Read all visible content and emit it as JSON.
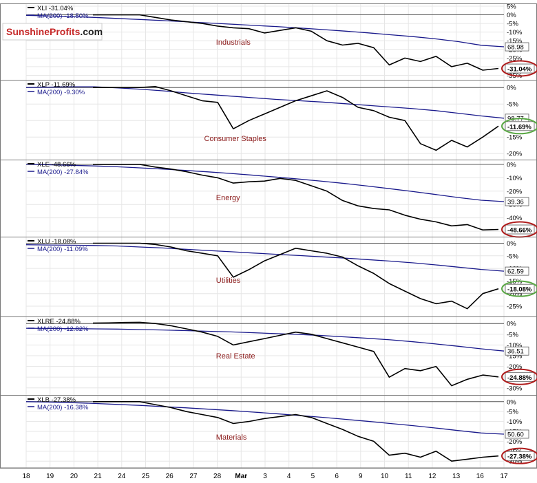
{
  "logo": {
    "part1": "Sunshine",
    "part2": "Profits",
    "part3": ".com"
  },
  "colors": {
    "price": "#000000",
    "ma": "#1a1a8c",
    "label": "#8b1a1a",
    "circle_down": "#b01c1c",
    "circle_up": "#5aa845",
    "grid": "#e6e6e6",
    "baseline": "#555555"
  },
  "chart_data": {
    "type": "line",
    "x": [
      "18",
      "19",
      "20",
      "21",
      "24",
      "25",
      "26",
      "27",
      "28",
      "Mar",
      "3",
      "4",
      "5",
      "6",
      "9",
      "10",
      "11",
      "12",
      "13",
      "16",
      "17"
    ],
    "panels": [
      {
        "ticker": "XLI",
        "legend_price": "XLI -31.04%",
        "legend_ma": "MA(200) -18.50%",
        "name": "Industrials",
        "ma_value": "68.98",
        "change": "-31.04%",
        "direction": "down",
        "ylim": [
          -36,
          5
        ],
        "ticks": [
          {
            "v": 5,
            "t": "5%"
          },
          {
            "v": 0,
            "t": "0%"
          },
          {
            "v": -5,
            "t": "-5%"
          },
          {
            "v": -10,
            "t": "-10%"
          },
          {
            "v": -15,
            "t": "-15%"
          },
          {
            "v": -20,
            "t": "-20%"
          },
          {
            "v": -25,
            "t": "-25%"
          },
          {
            "v": -30,
            "t": "-30%"
          },
          {
            "v": -35,
            "t": "-35%"
          }
        ],
        "ma": [
          -0.3,
          -0.6,
          -1.0,
          -1.5,
          -2.1,
          -2.7,
          -3.3,
          -4.0,
          -4.7,
          -5.4,
          -6.1,
          -6.8,
          -7.6,
          -8.5,
          -9.4,
          -10.4,
          -11.5,
          -12.6,
          -13.9,
          -15.5,
          -17.6,
          -18.5
        ],
        "price": [
          0,
          0,
          0,
          0,
          -1.5,
          -3.0,
          -4.0,
          -5.0,
          -6.5,
          -7.5,
          -8.0,
          -10.5,
          -9.0,
          -7.5,
          -9.5,
          -15.0,
          -17.5,
          -16.5,
          -19.0,
          -29.0,
          -25.0,
          -27.0,
          -24.0,
          -30.0,
          -28.0,
          -32.0,
          -31.04
        ]
      },
      {
        "ticker": "XLP",
        "legend_price": "XLP -11.69%",
        "legend_ma": "MA(200) -9.30%",
        "name": "Consumer Staples",
        "ma_value": "98.77",
        "change": "-11.69%",
        "direction": "up",
        "ylim": [
          -21,
          1.5
        ],
        "ticks": [
          {
            "v": 0,
            "t": "0%"
          },
          {
            "v": -5,
            "t": "-5%"
          },
          {
            "v": -10,
            "t": "-10%"
          },
          {
            "v": -15,
            "t": "-15%"
          },
          {
            "v": -20,
            "t": "-20%"
          }
        ],
        "ma": [
          0,
          0.1,
          0.2,
          0.2,
          -0.1,
          -0.5,
          -1.0,
          -1.6,
          -2.1,
          -2.6,
          -3.1,
          -3.6,
          -4.0,
          -4.4,
          -4.9,
          -5.4,
          -5.9,
          -6.4,
          -7.0,
          -7.8,
          -8.6,
          -9.3
        ],
        "price": [
          0,
          0,
          0,
          0,
          0.3,
          -1.0,
          -2.5,
          -4.0,
          -4.5,
          -12.5,
          -10.0,
          -8.0,
          -6.0,
          -4.0,
          -2.5,
          -1.0,
          -3.0,
          -6.0,
          -7.0,
          -9.0,
          -10.0,
          -17.0,
          -19.0,
          -16.0,
          -18.0,
          -15.0,
          -11.69
        ]
      },
      {
        "ticker": "XLE",
        "legend_price": "XLE -48.66%",
        "legend_ma": "MA(200) -27.84%",
        "name": "Energy",
        "ma_value": "39.36",
        "change": "-48.66%",
        "direction": "down",
        "ylim": [
          -52,
          1.5
        ],
        "ticks": [
          {
            "v": 0,
            "t": "0%"
          },
          {
            "v": -10,
            "t": "-10%"
          },
          {
            "v": -20,
            "t": "-20%"
          },
          {
            "v": -30,
            "t": "-30%"
          },
          {
            "v": -40,
            "t": "-40%"
          },
          {
            "v": -50,
            "t": "-50%"
          }
        ],
        "ma": [
          0,
          -0.3,
          -0.7,
          -1.2,
          -1.8,
          -2.6,
          -3.5,
          -4.5,
          -5.6,
          -6.8,
          -8.1,
          -9.5,
          -11.0,
          -12.6,
          -14.3,
          -16.2,
          -18.2,
          -20.3,
          -22.5,
          -24.8,
          -26.8,
          -27.84
        ],
        "price": [
          0,
          0,
          0,
          0,
          -2.0,
          -3.5,
          -5.5,
          -8.0,
          -10.0,
          -14.0,
          -13.0,
          -12.5,
          -10.5,
          -12.0,
          -16.0,
          -20.0,
          -27.0,
          -31.0,
          -33.0,
          -34.0,
          -38.0,
          -41.0,
          -43.0,
          -46.0,
          -45.0,
          -49.0,
          -48.66
        ]
      },
      {
        "ticker": "XLU",
        "legend_price": "XLU -18.08%",
        "legend_ma": "MA(200) -11.09%",
        "name": "Utilities",
        "ma_value": "62.59",
        "change": "-18.08%",
        "direction": "up",
        "ylim": [
          -28,
          1.5
        ],
        "ticks": [
          {
            "v": 0,
            "t": "0%"
          },
          {
            "v": -5,
            "t": "-5%"
          },
          {
            "v": -10,
            "t": "-10%"
          },
          {
            "v": -15,
            "t": "-15%"
          },
          {
            "v": -20,
            "t": "-20%"
          },
          {
            "v": -25,
            "t": "-25%"
          }
        ],
        "ma": [
          -0.6,
          -0.7,
          -0.8,
          -0.9,
          -1.1,
          -1.5,
          -1.9,
          -2.4,
          -2.9,
          -3.4,
          -3.9,
          -4.4,
          -4.9,
          -5.4,
          -5.9,
          -6.5,
          -7.1,
          -7.8,
          -8.6,
          -9.5,
          -10.4,
          -11.09
        ],
        "price": [
          0,
          0,
          0,
          0,
          -0.5,
          -1.5,
          -3.0,
          -4.0,
          -5.0,
          -13.5,
          -10.5,
          -7.0,
          -4.5,
          -2.0,
          -3.0,
          -4.0,
          -5.5,
          -9.0,
          -12.0,
          -16.0,
          -19.0,
          -22.0,
          -24.0,
          -23.0,
          -26.0,
          -20.0,
          -18.08
        ]
      },
      {
        "ticker": "XLRE",
        "legend_price": "XLRE -24.88%",
        "legend_ma": "MA(200) -12.82%",
        "name": "Real Estate",
        "ma_value": "36.51",
        "change": "-24.88%",
        "direction": "down",
        "ylim": [
          -32,
          2
        ],
        "ticks": [
          {
            "v": 0,
            "t": "0%"
          },
          {
            "v": -5,
            "t": "-5%"
          },
          {
            "v": -10,
            "t": "-10%"
          },
          {
            "v": -15,
            "t": "-15%"
          },
          {
            "v": -20,
            "t": "-20%"
          },
          {
            "v": -25,
            "t": "-25%"
          },
          {
            "v": -30,
            "t": "-30%"
          }
        ],
        "ma": [
          -2.2,
          -2.3,
          -2.4,
          -2.5,
          -2.6,
          -2.8,
          -3.0,
          -3.3,
          -3.6,
          -3.9,
          -4.3,
          -4.7,
          -5.1,
          -5.6,
          -6.2,
          -6.9,
          -7.6,
          -8.5,
          -9.5,
          -10.6,
          -11.8,
          -12.82
        ],
        "price": [
          0.2,
          0.3,
          0.5,
          0.6,
          0,
          -1.0,
          -2.5,
          -4.0,
          -6.0,
          -10.0,
          -8.5,
          -7.0,
          -5.5,
          -4.0,
          -5.0,
          -7.0,
          -9.0,
          -11.0,
          -13.0,
          -25.0,
          -21.0,
          -22.0,
          -20.0,
          -29.0,
          -26.0,
          -24.0,
          -24.88
        ]
      },
      {
        "ticker": "XLB",
        "legend_price": "XLB -27.38%",
        "legend_ma": "MA(200) -16.38%",
        "name": "Materials",
        "ma_value": "50.60",
        "change": "-27.38%",
        "direction": "down",
        "ylim": [
          -32,
          2
        ],
        "ticks": [
          {
            "v": 0,
            "t": "0%"
          },
          {
            "v": -5,
            "t": "-5%"
          },
          {
            "v": -10,
            "t": "-10%"
          },
          {
            "v": -15,
            "t": "-15%"
          },
          {
            "v": -20,
            "t": "-20%"
          },
          {
            "v": -25,
            "t": "-25%"
          },
          {
            "v": -30,
            "t": "-30%"
          }
        ],
        "ma": [
          0,
          -0.2,
          -0.5,
          -0.9,
          -1.4,
          -1.9,
          -2.5,
          -3.1,
          -3.8,
          -4.5,
          -5.3,
          -6.1,
          -7.0,
          -7.9,
          -8.9,
          -9.9,
          -11.0,
          -12.1,
          -13.3,
          -14.6,
          -15.8,
          -16.38
        ],
        "price": [
          0,
          0,
          0,
          0,
          -1.5,
          -3.0,
          -5.0,
          -6.5,
          -8.0,
          -11.0,
          -10.0,
          -8.5,
          -7.5,
          -6.5,
          -8.0,
          -11.0,
          -14.0,
          -17.5,
          -20.0,
          -27.0,
          -26.0,
          -28.0,
          -25.0,
          -30.0,
          -29.0,
          -28.0,
          -27.38
        ]
      }
    ]
  }
}
